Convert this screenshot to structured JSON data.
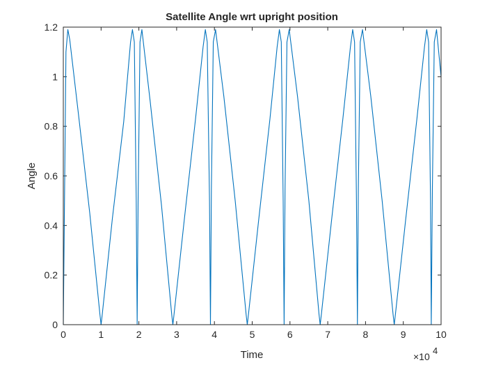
{
  "chart_data": {
    "type": "line",
    "title": "Satellite Angle wrt upright position",
    "xlabel": "Time",
    "ylabel": "Angle",
    "x_multiplier": "×10",
    "x_multiplier_exponent": "4",
    "xlim": [
      0,
      100000
    ],
    "ylim": [
      0,
      1.2
    ],
    "x_ticks": [
      0,
      10000,
      20000,
      30000,
      40000,
      50000,
      60000,
      70000,
      80000,
      90000,
      100000
    ],
    "x_tick_labels": [
      "0",
      "1",
      "2",
      "3",
      "4",
      "5",
      "6",
      "7",
      "8",
      "9",
      "10"
    ],
    "y_ticks": [
      0,
      0.2,
      0.4,
      0.6,
      0.8,
      1,
      1.2
    ],
    "y_tick_labels": [
      "0",
      "0.2",
      "0.4",
      "0.6",
      "0.8",
      "1",
      "1.2"
    ],
    "grid": false,
    "box": true,
    "series": [
      {
        "color": "#0072BD",
        "x": [
          0,
          700,
          1200,
          1700,
          4000,
          7000,
          9700,
          10000,
          10300,
          13000,
          16000,
          17800,
          18300,
          18800,
          19300,
          19550,
          19800,
          20300,
          20800,
          23000,
          26000,
          28700,
          29000,
          29300,
          32000,
          35000,
          37000,
          37600,
          38100,
          38700,
          38950,
          39200,
          39700,
          40300,
          42500,
          45500,
          48400,
          48700,
          49000,
          51700,
          54700,
          56600,
          57200,
          57700,
          58200,
          58450,
          58700,
          59200,
          59800,
          62000,
          65000,
          67700,
          68000,
          68300,
          71000,
          74000,
          76000,
          76600,
          77100,
          77600,
          77850,
          78100,
          78600,
          79200,
          81400,
          84400,
          87300,
          87600,
          87900,
          90600,
          93600,
          95600,
          96200,
          96700,
          97200,
          97400,
          97700,
          98200,
          98800,
          100000
        ],
        "y": [
          0,
          1.1,
          1.19,
          1.15,
          0.85,
          0.45,
          0.04,
          0,
          0.04,
          0.43,
          0.82,
          1.14,
          1.19,
          1.14,
          0.5,
          0,
          0.5,
          1.14,
          1.19,
          0.9,
          0.48,
          0.04,
          0,
          0.04,
          0.42,
          0.83,
          1.12,
          1.19,
          1.14,
          0.5,
          0,
          0.55,
          1.14,
          1.19,
          0.92,
          0.5,
          0.04,
          0,
          0.04,
          0.42,
          0.83,
          1.12,
          1.19,
          1.14,
          0.5,
          0,
          0.55,
          1.14,
          1.19,
          0.92,
          0.5,
          0.04,
          0,
          0.04,
          0.42,
          0.83,
          1.12,
          1.19,
          1.14,
          0.5,
          0,
          0.55,
          1.14,
          1.19,
          0.92,
          0.5,
          0.04,
          0,
          0.04,
          0.42,
          0.83,
          1.12,
          1.19,
          1.14,
          0.5,
          0,
          0.55,
          1.14,
          1.19,
          1.0
        ]
      }
    ]
  }
}
